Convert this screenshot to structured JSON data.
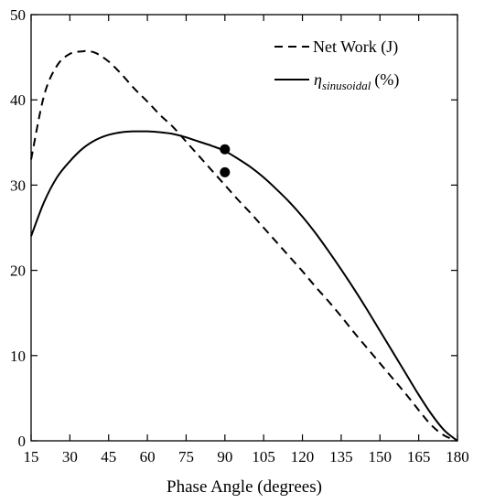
{
  "chart_data": {
    "type": "line",
    "xlabel": "Phase Angle (degrees)",
    "ylabel": "",
    "xlim": [
      15,
      180
    ],
    "ylim": [
      0,
      50
    ],
    "xticks": [
      15,
      30,
      45,
      60,
      75,
      90,
      105,
      120,
      135,
      150,
      165,
      180
    ],
    "yticks": [
      0,
      10,
      20,
      30,
      40,
      50
    ],
    "legend_position": "top-right",
    "series": [
      {
        "name": "Net Work (J)",
        "style": "dashed",
        "color": "#000000",
        "x": [
          15,
          20,
          25,
          30,
          35,
          37,
          40,
          45,
          50,
          55,
          60,
          65,
          70,
          75,
          80,
          85,
          90,
          95,
          100,
          105,
          110,
          115,
          120,
          125,
          130,
          135,
          140,
          145,
          150,
          155,
          160,
          165,
          170,
          175,
          180
        ],
        "y": [
          33.0,
          40.5,
          44.0,
          45.4,
          45.7,
          45.7,
          45.5,
          44.5,
          43.0,
          41.3,
          39.8,
          38.2,
          36.8,
          35.1,
          33.4,
          31.7,
          30.0,
          28.3,
          26.7,
          25.0,
          23.3,
          21.6,
          19.9,
          18.1,
          16.4,
          14.6,
          12.7,
          10.9,
          9.1,
          7.3,
          5.5,
          3.6,
          1.8,
          0.6,
          0
        ]
      },
      {
        "name": "sinusoidal (%)",
        "name_prefix": "η",
        "style": "solid",
        "color": "#000000",
        "x": [
          15,
          20,
          25,
          30,
          35,
          40,
          45,
          50,
          55,
          60,
          65,
          70,
          75,
          80,
          85,
          90,
          95,
          100,
          105,
          110,
          115,
          120,
          125,
          130,
          135,
          140,
          145,
          150,
          155,
          160,
          165,
          170,
          175,
          180
        ],
        "y": [
          24.0,
          28.0,
          30.9,
          32.8,
          34.3,
          35.3,
          35.9,
          36.2,
          36.3,
          36.3,
          36.2,
          36.0,
          35.6,
          35.1,
          34.6,
          34.0,
          33.1,
          32.1,
          30.9,
          29.5,
          28.0,
          26.3,
          24.4,
          22.3,
          20.1,
          17.8,
          15.4,
          12.9,
          10.4,
          7.9,
          5.4,
          3.1,
          1.2,
          0
        ]
      }
    ],
    "markers": [
      {
        "x": 90,
        "y": 34.2
      },
      {
        "x": 90,
        "y": 31.5
      }
    ]
  }
}
